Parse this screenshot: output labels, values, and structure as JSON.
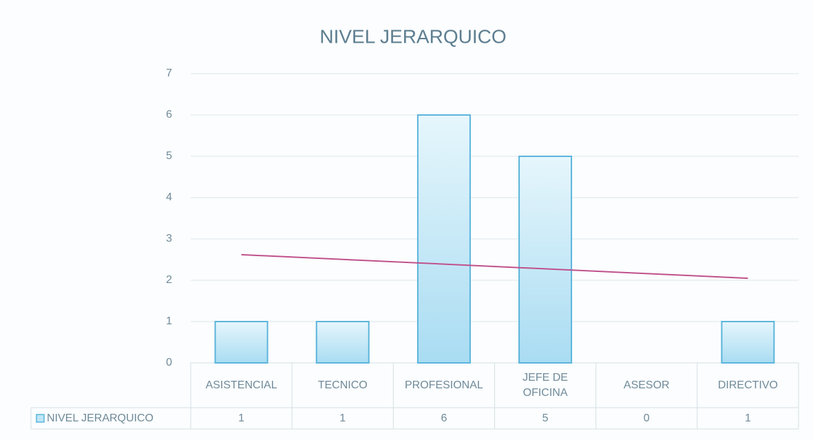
{
  "chart_data": {
    "type": "bar",
    "title": "NIVEL JERARQUICO",
    "categories": [
      "ASISTENCIAL",
      "TECNICO",
      "PROFESIONAL",
      "JEFE DE OFICINA",
      "ASESOR",
      "DIRECTIVO"
    ],
    "series": [
      {
        "name": "NIVEL JERARQUICO",
        "color": "#bfe6f6",
        "values": [
          1,
          1,
          6,
          5,
          0,
          1
        ]
      }
    ],
    "ylim": [
      0,
      7
    ],
    "yticks": [
      0,
      1,
      2,
      3,
      4,
      5,
      6,
      7
    ],
    "grid": true,
    "trendline": "linear",
    "trendline_color": "#c0508c",
    "data_table": true
  }
}
